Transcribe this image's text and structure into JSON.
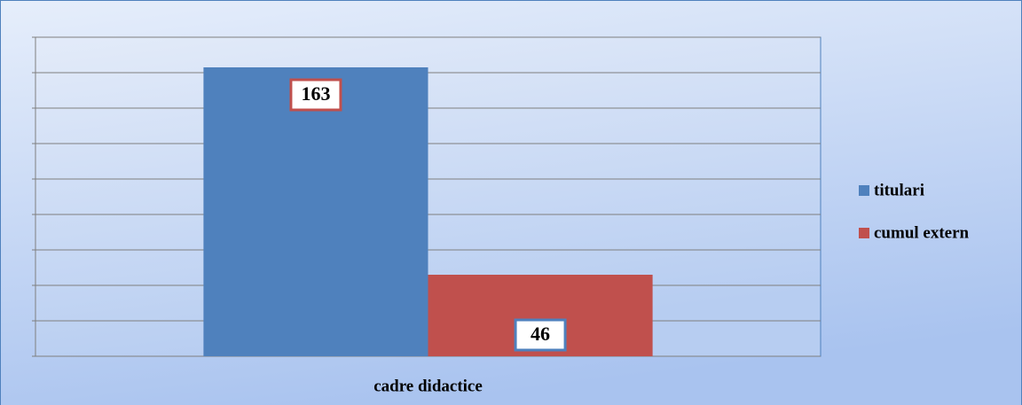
{
  "chart_data": {
    "type": "bar",
    "categories": [
      "cadre didactice"
    ],
    "series": [
      {
        "name": "titulari",
        "color": "#4f81bd",
        "values": [
          163
        ]
      },
      {
        "name": "cumul extern",
        "color": "#c0504d",
        "values": [
          46
        ]
      }
    ],
    "ylim": [
      0,
      180
    ],
    "yticks": [
      0,
      20,
      40,
      60,
      80,
      100,
      120,
      140,
      160,
      180
    ],
    "grid": true,
    "legend": "right"
  }
}
